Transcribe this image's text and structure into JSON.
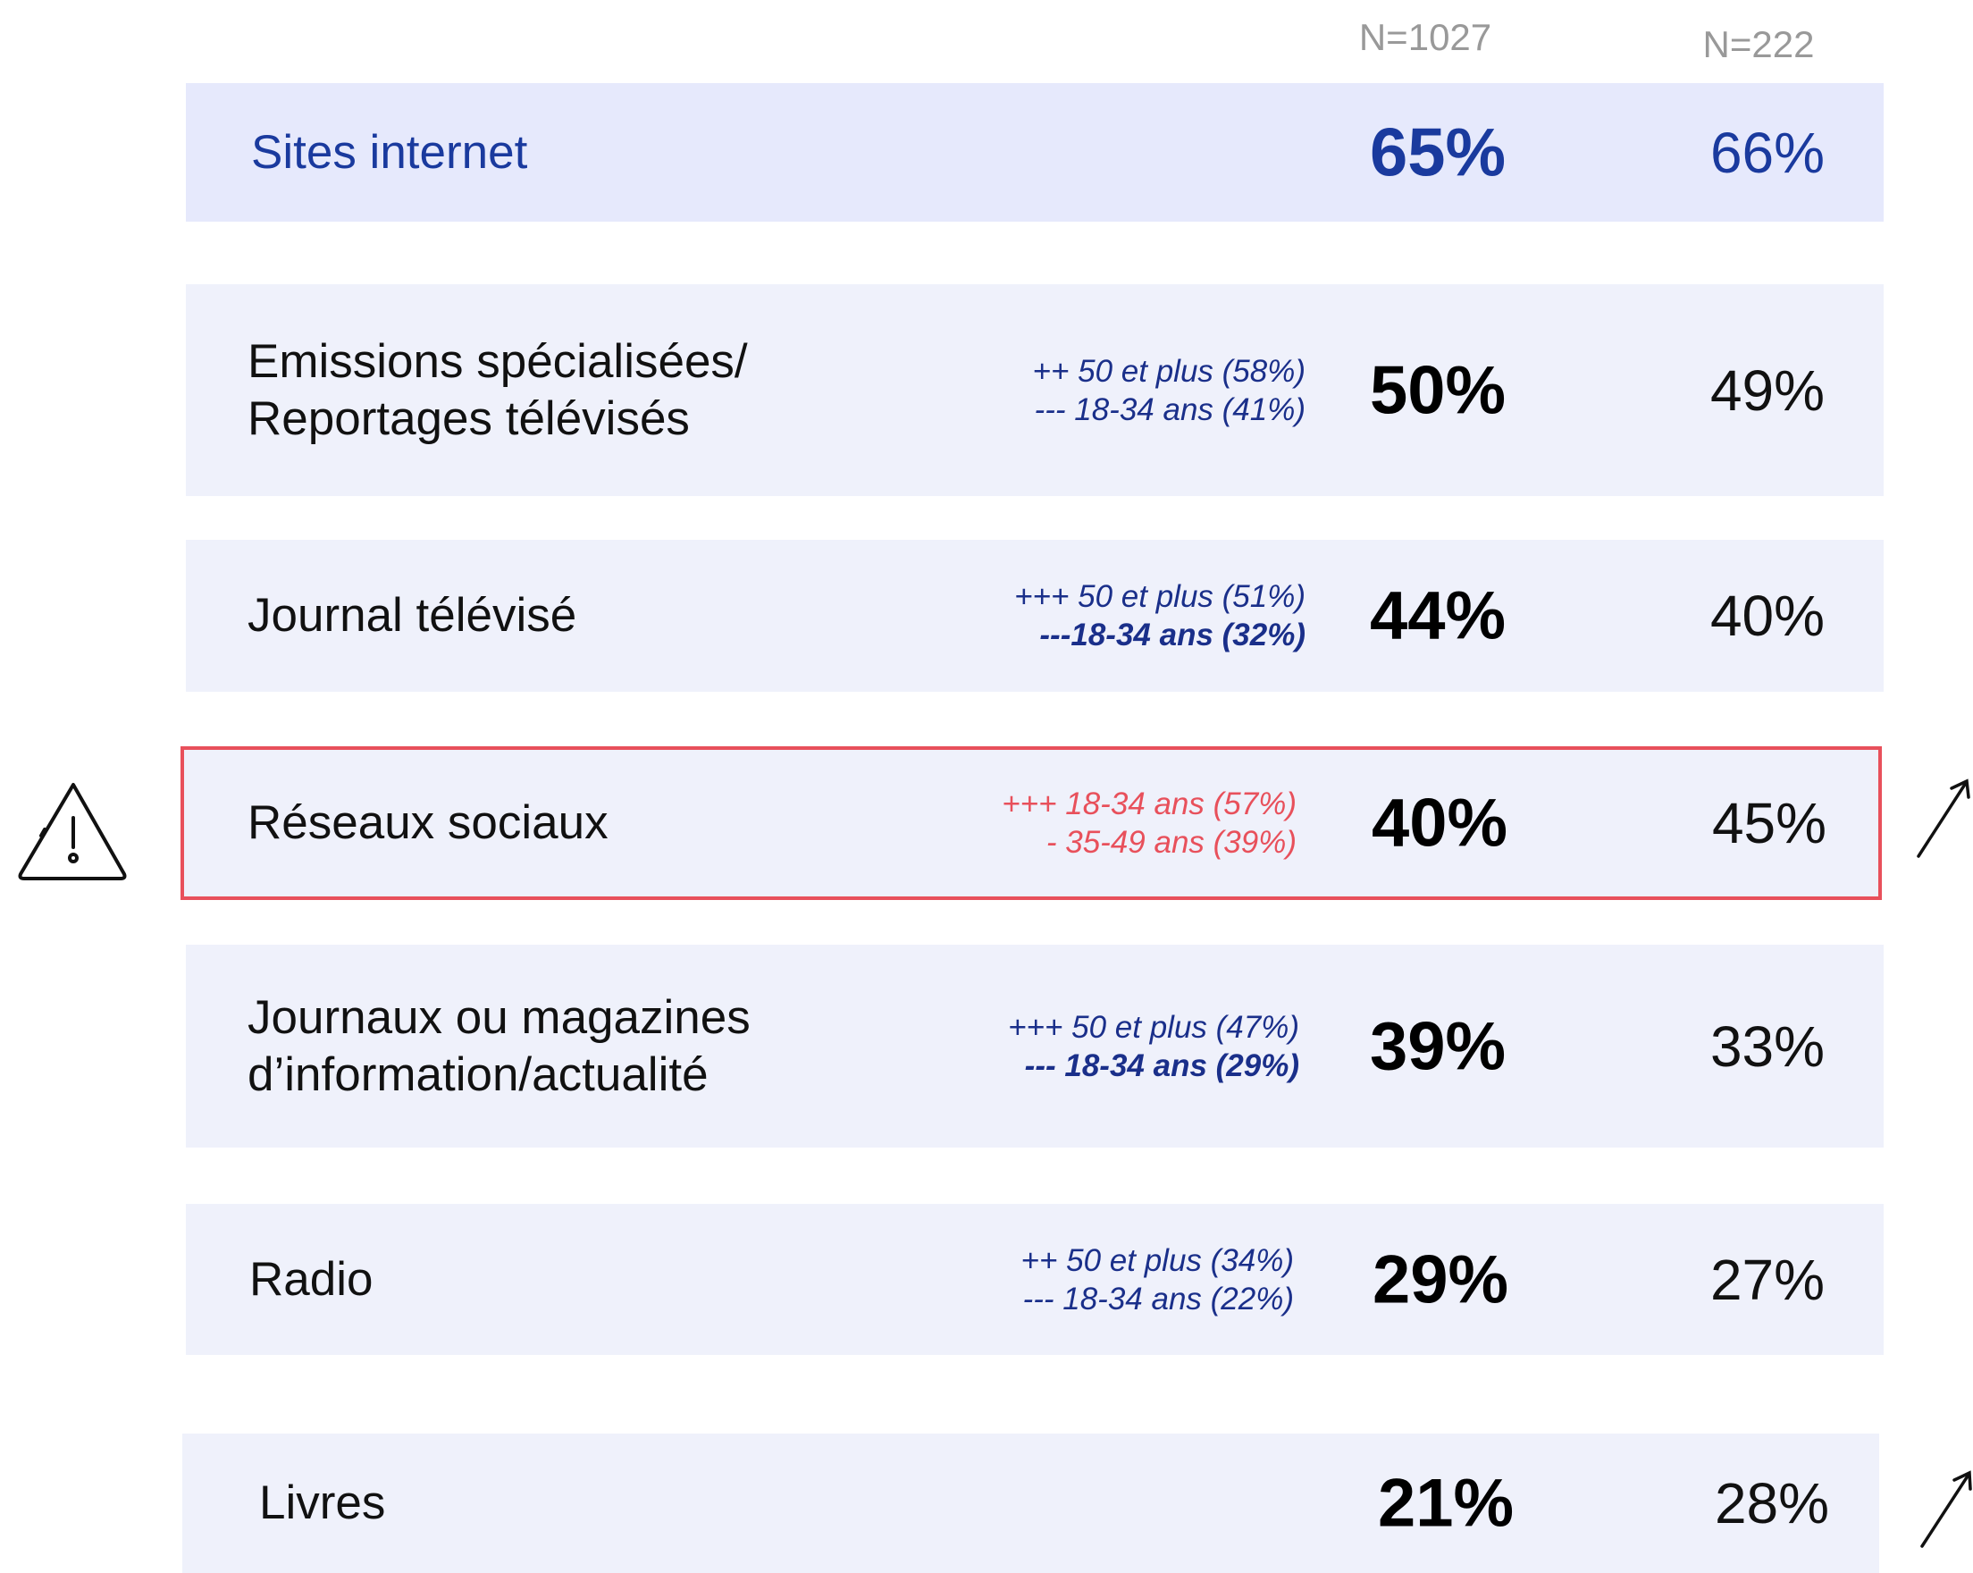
{
  "header": [
    "N=1027",
    "N=222"
  ],
  "rows": [
    {
      "label": [
        "Sites internet"
      ],
      "notes": [],
      "value": "65%",
      "value2": "66%"
    },
    {
      "label": [
        "Emissions spécialisées/",
        "Reportages télévisés"
      ],
      "notes": [
        "++ 50 et plus (58%)",
        "--- 18-34 ans (41%)"
      ],
      "value": "50%",
      "value2": "49%"
    },
    {
      "label": [
        "Journal télévisé"
      ],
      "notes": [
        "+++ 50 et plus (51%)",
        "---18-34 ans (32%)"
      ],
      "value": "44%",
      "value2": "40%"
    },
    {
      "label": [
        "Réseaux sociaux"
      ],
      "notes": [
        "+++ 18-34 ans (57%)",
        "- 35-49 ans (39%)"
      ],
      "value": "40%",
      "value2": "45%"
    },
    {
      "label": [
        "Journaux ou magazines",
        "d’information/actualité"
      ],
      "notes": [
        "+++ 50 et plus (47%)",
        "--- 18-34 ans (29%)"
      ],
      "value": "39%",
      "value2": "33%"
    },
    {
      "label": [
        "Radio"
      ],
      "notes": [
        "++ 50 et plus (34%)",
        "--- 18-34 ans (22%)"
      ],
      "value": "29%",
      "value2": "27%"
    },
    {
      "label": [
        "Livres"
      ],
      "notes": [],
      "value": "21%",
      "value2": "28%"
    }
  ]
}
